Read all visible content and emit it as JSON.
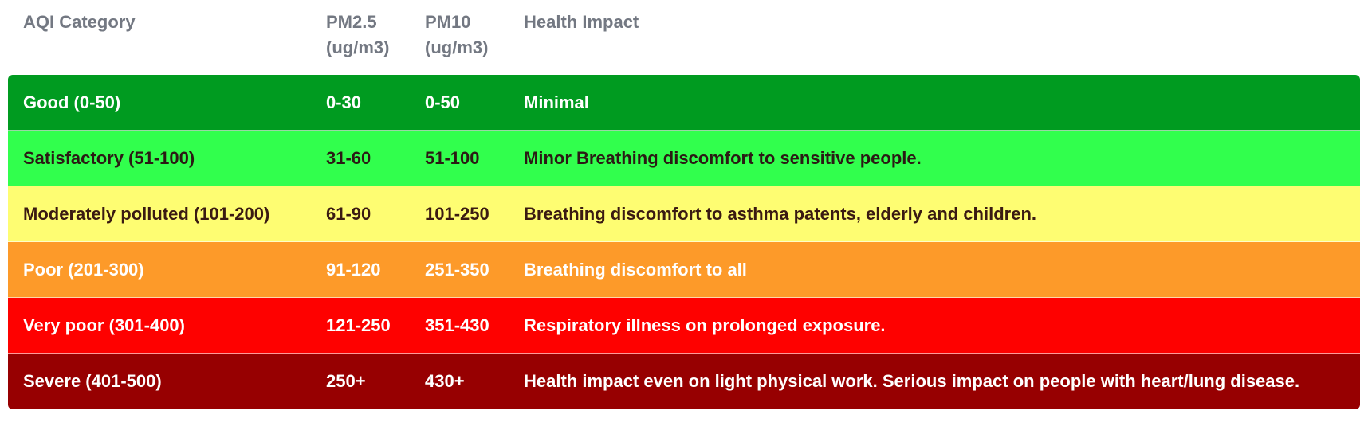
{
  "header": {
    "category": "AQI Category",
    "pm25": "PM2.5\n(ug/m3)",
    "pm10": "PM10\n(ug/m3)",
    "impact": "Health Impact"
  },
  "rows": [
    {
      "category": "Good  (0-50)",
      "pm25": "0-30",
      "pm10": "0-50",
      "impact": "Minimal",
      "bg": "#009b20",
      "fg": "#ffffff"
    },
    {
      "category": "Satisfactory (51-100)",
      "pm25": "31-60",
      "pm10": "51-100",
      "impact": "Minor Breathing discomfort to sensitive people.",
      "bg": "#31ff4d",
      "fg": "#2b1a14"
    },
    {
      "category": "Moderately polluted (101-200)",
      "pm25": "61-90",
      "pm10": "101-250",
      "impact": "Breathing discomfort to asthma patents, elderly and children.",
      "bg": "#fefd72",
      "fg": "#3a1a12"
    },
    {
      "category": "Poor (201-300)",
      "pm25": "91-120",
      "pm10": "251-350",
      "impact": "Breathing discomfort to all",
      "bg": "#fd9a29",
      "fg": "#ffffff"
    },
    {
      "category": "Very poor (301-400)",
      "pm25": "121-250",
      "pm10": "351-430",
      "impact": "Respiratory illness on prolonged exposure.",
      "bg": "#fe0100",
      "fg": "#ffffff"
    },
    {
      "category": "Severe (401-500)",
      "pm25": "250+",
      "pm10": "430+",
      "impact": "Health impact even on light physical work. Serious impact on people with heart/lung disease.",
      "bg": "#970001",
      "fg": "#ffffff"
    }
  ]
}
